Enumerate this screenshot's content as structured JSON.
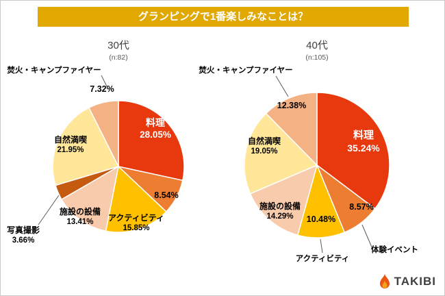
{
  "header": {
    "title": "グランピングで1番楽しみなことは？"
  },
  "colors": {
    "banner_bg": "#E0A800",
    "banner_text": "#FFFFFF",
    "title_text": "#404040",
    "subtitle_text": "#595959",
    "leader_line": "#595959",
    "logo_text": "#3F3F3F",
    "flame_outer": "#EA5514",
    "flame_inner": "#F5A31A"
  },
  "chart_data": [
    {
      "type": "pie",
      "title": "30代",
      "subtitle": "(n:82)",
      "legend_position": "none",
      "slices": [
        {
          "label": "料理",
          "pct": "28.05%",
          "value": 28.05,
          "color": "#E8380D",
          "label_color": "#FFFFFF"
        },
        {
          "label": "",
          "pct": "8.54%",
          "value": 8.54,
          "color": "#ED7D31",
          "label_color": "#000000"
        },
        {
          "label": "アクティビティ",
          "pct": "15.85%",
          "value": 15.85,
          "color": "#FFC000",
          "label_color": "#000000"
        },
        {
          "label": "施設の設備",
          "pct": "13.41%",
          "value": 13.41,
          "color": "#F8CBAD",
          "label_color": "#000000"
        },
        {
          "label": "写真撮影",
          "pct": "3.66%",
          "value": 3.66,
          "color": "#C55A11",
          "label_color": "#000000",
          "label_outside": true
        },
        {
          "label": "自然満喫",
          "pct": "21.95%",
          "value": 21.95,
          "color": "#FFE699",
          "label_color": "#000000"
        },
        {
          "label": "焚火・キャンプファイヤー",
          "pct": "7.32%",
          "value": 7.32,
          "color": "#F4B183",
          "label_color": "#000000",
          "label_outside": true
        }
      ]
    },
    {
      "type": "pie",
      "title": "40代",
      "subtitle": "(n:105)",
      "legend_position": "none",
      "slices": [
        {
          "label": "料理",
          "pct": "35.24%",
          "value": 35.24,
          "color": "#E8380D",
          "label_color": "#FFFFFF"
        },
        {
          "label": "体験イベント",
          "pct": "8.57%",
          "value": 8.57,
          "color": "#ED7D31",
          "label_color": "#000000",
          "label_outside": true
        },
        {
          "label": "アクティビティ",
          "pct": "10.48%",
          "value": 10.48,
          "color": "#FFC000",
          "label_color": "#000000",
          "label_outside": true
        },
        {
          "label": "施設の設備",
          "pct": "14.29%",
          "value": 14.29,
          "color": "#F8CBAD",
          "label_color": "#000000"
        },
        {
          "label": "自然満喫",
          "pct": "19.05%",
          "value": 19.05,
          "color": "#FFE699",
          "label_color": "#000000"
        },
        {
          "label": "焚火・キャンプファイヤー",
          "pct": "12.38%",
          "value": 12.38,
          "color": "#F4B183",
          "label_color": "#000000",
          "label_outside": true
        }
      ]
    }
  ],
  "logo": {
    "text": "TAKIBI"
  }
}
